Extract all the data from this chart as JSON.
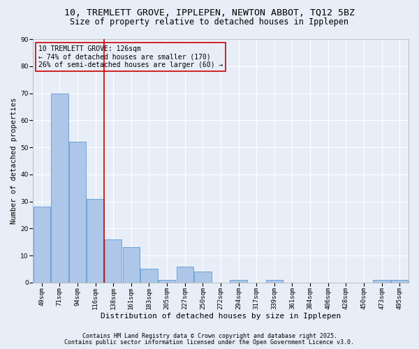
{
  "title1": "10, TREMLETT GROVE, IPPLEPEN, NEWTON ABBOT, TQ12 5BZ",
  "title2": "Size of property relative to detached houses in Ipplepen",
  "xlabel": "Distribution of detached houses by size in Ipplepen",
  "ylabel": "Number of detached properties",
  "categories": [
    "49sqm",
    "71sqm",
    "94sqm",
    "116sqm",
    "138sqm",
    "161sqm",
    "183sqm",
    "205sqm",
    "227sqm",
    "250sqm",
    "272sqm",
    "294sqm",
    "317sqm",
    "339sqm",
    "361sqm",
    "384sqm",
    "406sqm",
    "428sqm",
    "450sqm",
    "473sqm",
    "495sqm"
  ],
  "values": [
    28,
    70,
    52,
    31,
    16,
    13,
    5,
    1,
    6,
    4,
    0,
    1,
    0,
    1,
    0,
    0,
    0,
    0,
    0,
    1,
    1
  ],
  "bar_color": "#aec6e8",
  "bar_edge_color": "#5b9bd5",
  "background_color": "#e8eef7",
  "grid_color": "#ffffff",
  "vline_x": 3.5,
  "vline_color": "#cc0000",
  "annotation_title": "10 TREMLETT GROVE: 126sqm",
  "annotation_line1": "← 74% of detached houses are smaller (170)",
  "annotation_line2": "26% of semi-detached houses are larger (60) →",
  "annotation_box_color": "#cc0000",
  "ylim": [
    0,
    90
  ],
  "yticks": [
    0,
    10,
    20,
    30,
    40,
    50,
    60,
    70,
    80,
    90
  ],
  "footer1": "Contains HM Land Registry data © Crown copyright and database right 2025.",
  "footer2": "Contains public sector information licensed under the Open Government Licence v3.0.",
  "title1_fontsize": 9.5,
  "title2_fontsize": 8.5,
  "xlabel_fontsize": 8,
  "ylabel_fontsize": 7.5,
  "tick_fontsize": 6.5,
  "ann_fontsize": 7,
  "footer_fontsize": 6
}
